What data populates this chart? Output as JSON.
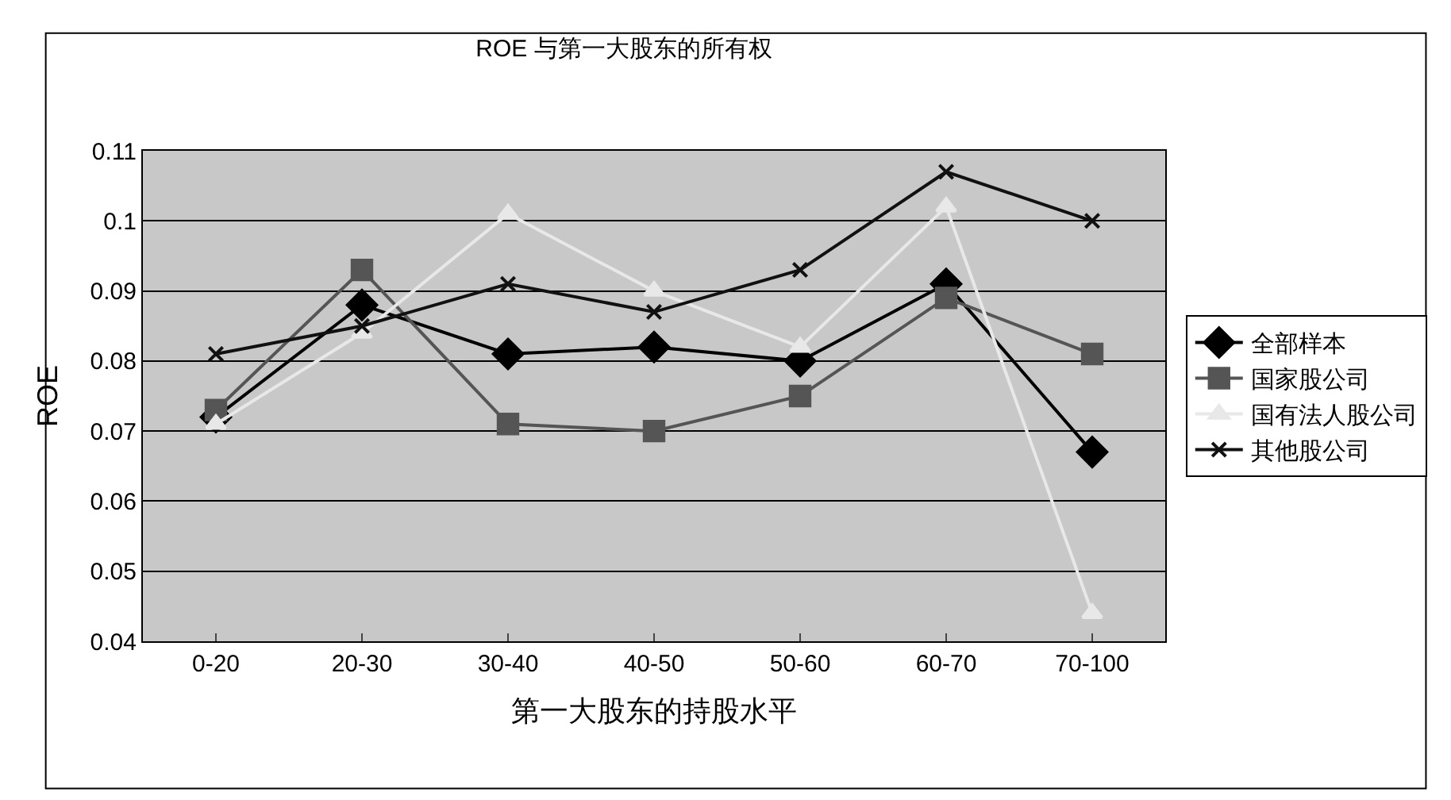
{
  "chart_data": {
    "type": "line",
    "title": "ROE 与第一大股东的所有权",
    "xlabel": "第一大股东的持股水平",
    "ylabel": "ROE",
    "categories": [
      "0-20",
      "20-30",
      "30-40",
      "40-50",
      "50-60",
      "60-70",
      "70-100"
    ],
    "series": [
      {
        "name": "全部样本",
        "color": "#000000",
        "marker": "diamond",
        "values": [
          0.072,
          0.088,
          0.081,
          0.082,
          0.08,
          0.091,
          0.067
        ]
      },
      {
        "name": "国家股公司",
        "color": "#555555",
        "marker": "square",
        "values": [
          0.073,
          0.093,
          0.071,
          0.07,
          0.075,
          0.089,
          0.081
        ]
      },
      {
        "name": "国有法人股公司",
        "color": "#e8e8e8",
        "marker": "triangle",
        "values": [
          0.071,
          0.084,
          0.101,
          0.09,
          0.082,
          0.102,
          0.044
        ]
      },
      {
        "name": "其他股公司",
        "color": "#111111",
        "marker": "cross",
        "values": [
          0.081,
          0.085,
          0.091,
          0.087,
          0.093,
          0.107,
          0.1
        ]
      }
    ],
    "ylim": [
      0.04,
      0.11
    ],
    "yticks": [
      0.04,
      0.05,
      0.06,
      0.07,
      0.08,
      0.09,
      0.1,
      0.11
    ],
    "grid": "y",
    "legend": "right"
  }
}
